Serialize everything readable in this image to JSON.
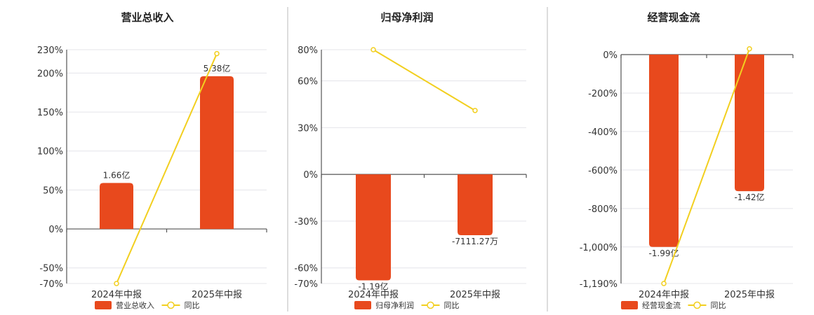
{
  "colors": {
    "bar": "#e8491d",
    "line": "#f2cf1f"
  },
  "chart_data": [
    {
      "type": "bar",
      "title": "营业总收入",
      "categories": [
        "2024年中报",
        "2025年中报"
      ],
      "series": [
        {
          "name": "营业总收入",
          "display_values": [
            "1.66亿",
            "5.38亿"
          ]
        },
        {
          "name": "同比",
          "type": "line",
          "values": [
            -70,
            225
          ]
        }
      ],
      "bar_values_pct": [
        59,
        196
      ],
      "ylim": [
        -70,
        230
      ],
      "yticks": [
        -70,
        -50,
        0,
        50,
        100,
        150,
        200,
        230
      ],
      "ytick_labels": [
        "-70%",
        "-50%",
        "0%",
        "50%",
        "100%",
        "150%",
        "200%",
        "230%"
      ],
      "legend": [
        "营业总收入",
        "同比"
      ]
    },
    {
      "type": "bar",
      "title": "归母净利润",
      "categories": [
        "2024年中报",
        "2025年中报"
      ],
      "series": [
        {
          "name": "归母净利润",
          "display_values": [
            "-1.19亿",
            "-7111.27万"
          ]
        },
        {
          "name": "同比",
          "type": "line",
          "values": [
            80,
            41
          ]
        }
      ],
      "bar_values_pct": [
        -68,
        -39
      ],
      "ylim": [
        -70,
        80
      ],
      "yticks": [
        -70,
        -60,
        -30,
        0,
        30,
        60,
        80
      ],
      "ytick_labels": [
        "-70%",
        "-60%",
        "-30%",
        "0%",
        "30%",
        "60%",
        "80%"
      ],
      "legend": [
        "归母净利润",
        "同比"
      ]
    },
    {
      "type": "bar",
      "title": "经营现金流",
      "categories": [
        "2024年中报",
        "2025年中报"
      ],
      "series": [
        {
          "name": "经营现金流",
          "display_values": [
            "-1.99亿",
            "-1.42亿"
          ]
        },
        {
          "name": "同比",
          "type": "line",
          "values": [
            -1190,
            30
          ]
        }
      ],
      "bar_values_pct": [
        -1000,
        -710
      ],
      "ylim": [
        -1190,
        0
      ],
      "yticks": [
        -1190,
        -1000,
        -800,
        -600,
        -400,
        -200,
        0
      ],
      "ytick_labels": [
        "-1,190%",
        "-1,000%",
        "-800%",
        "-600%",
        "-400%",
        "-200%",
        "0%"
      ],
      "legend": [
        "经营现金流",
        "同比"
      ]
    }
  ]
}
